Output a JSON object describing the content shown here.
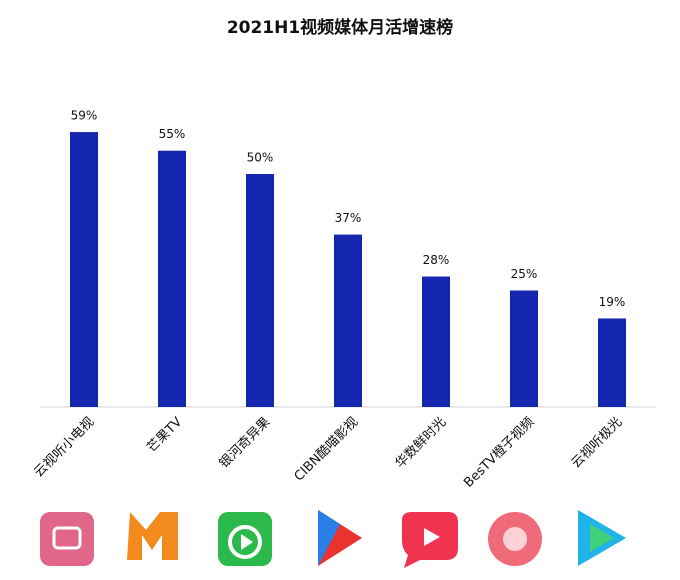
{
  "chart_data": {
    "type": "bar",
    "title": "2021H1视频媒体月活增速榜",
    "categories": [
      "云视听小电视",
      "芒果TV",
      "银河奇异果",
      "CIBN酷喵影视",
      "华数鲜时光",
      "BesTV橙子视频",
      "云视听极光"
    ],
    "values": [
      59,
      55,
      50,
      37,
      28,
      25,
      19
    ],
    "value_labels": [
      "59%",
      "55%",
      "50%",
      "37%",
      "28%",
      "25%",
      "19%"
    ],
    "color": "#1526af"
  }
}
